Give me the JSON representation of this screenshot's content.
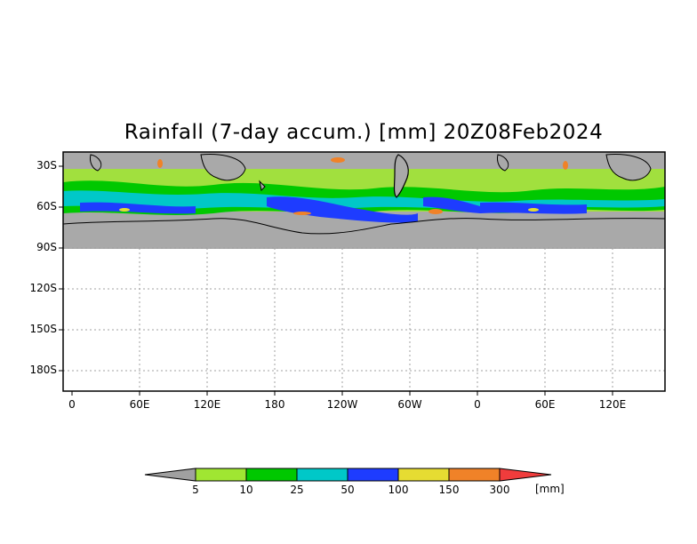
{
  "title": "Rainfall (7-day accum.) [mm] 20Z08Feb2024",
  "y_ticks": [
    "30S",
    "60S",
    "90S",
    "120S",
    "150S",
    "180S"
  ],
  "x_ticks": [
    "0",
    "60E",
    "120E",
    "180",
    "120W",
    "60W",
    "0",
    "60E",
    "120E"
  ],
  "colorbar": {
    "labels": [
      "5",
      "10",
      "25",
      "50",
      "100",
      "150",
      "300"
    ],
    "unit": "[mm]",
    "colors": [
      "#a0a0a0",
      "#a0e632",
      "#00c800",
      "#00c8c8",
      "#1e3cff",
      "#e6dc32",
      "#f08228",
      "#f03c3c"
    ]
  },
  "colors": {
    "no_data_gray": "#a9a9a9",
    "grid_line": "#a0a0a0"
  }
}
